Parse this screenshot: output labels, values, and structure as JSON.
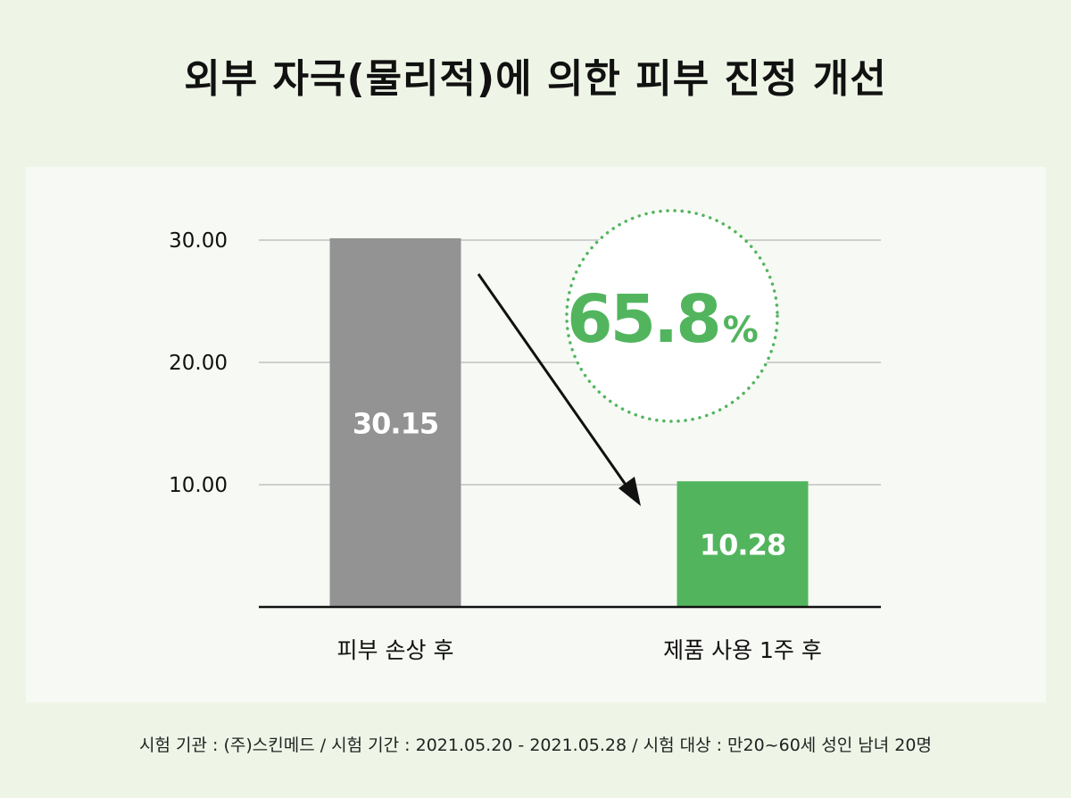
{
  "title": "외부 자극(물리적)에 의한 피부 진정 개선",
  "footnote": "시험 기관 : (주)스킨메드 / 시험 기간 : 2021.05.20 - 2021.05.28 / 시험 대상 : 만20~60세 성인 남녀 20명",
  "badge": {
    "text": "65.8",
    "unit": "%"
  },
  "colors": {
    "background": "#eef5e6",
    "panel": "#f7f9f4",
    "bar_before": "#939393",
    "bar_after": "#52b55e",
    "accent": "#52b55e",
    "grid": "#cfcfcf"
  },
  "chart_data": {
    "type": "bar",
    "categories": [
      "피부 손상 후",
      "제품 사용 1주 후"
    ],
    "values": [
      30.15,
      10.28
    ],
    "value_labels": [
      "30.15",
      "10.28"
    ],
    "ylim": [
      0,
      30
    ],
    "yticks": [
      "10.00",
      "20.00",
      "30.00"
    ],
    "grid": true,
    "annotation": "65.8%"
  }
}
